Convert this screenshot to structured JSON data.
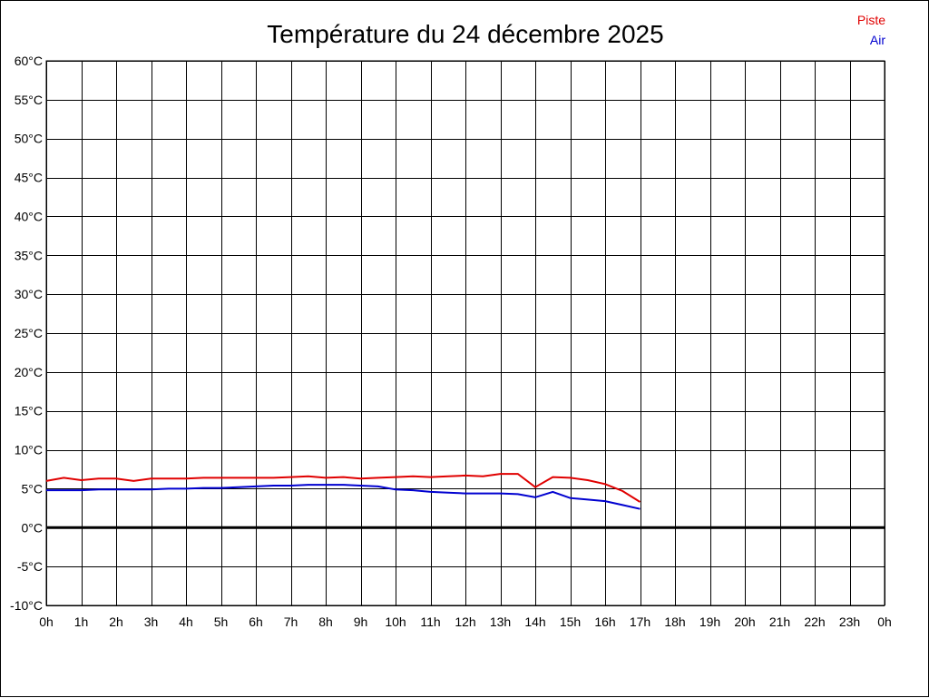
{
  "chart_data": {
    "type": "line",
    "title": "Température du 24 décembre 2025",
    "xlabel": "",
    "ylabel": "",
    "x_ticks": [
      "0h",
      "1h",
      "2h",
      "3h",
      "4h",
      "5h",
      "6h",
      "7h",
      "8h",
      "9h",
      "10h",
      "11h",
      "12h",
      "13h",
      "14h",
      "15h",
      "16h",
      "17h",
      "18h",
      "19h",
      "20h",
      "21h",
      "22h",
      "23h",
      "0h"
    ],
    "y_ticks": [
      "60°C",
      "55°C",
      "50°C",
      "45°C",
      "40°C",
      "35°C",
      "30°C",
      "25°C",
      "20°C",
      "15°C",
      "10°C",
      "5°C",
      "0°C",
      "-5°C",
      "-10°C"
    ],
    "xlim": [
      0,
      24
    ],
    "ylim": [
      -10,
      60
    ],
    "grid": true,
    "legend_position": "top-right",
    "zero_line": true,
    "series": [
      {
        "name": "Piste",
        "color": "#e00000",
        "x": [
          0,
          0.5,
          1,
          1.5,
          2,
          2.5,
          3,
          3.5,
          4,
          4.5,
          5,
          5.5,
          6,
          6.5,
          7,
          7.5,
          8,
          8.5,
          9,
          9.5,
          10,
          10.5,
          11,
          11.5,
          12,
          12.5,
          13,
          13.5,
          14,
          14.5,
          15,
          15.5,
          16,
          16.5,
          17
        ],
        "values": [
          6.0,
          6.4,
          6.1,
          6.3,
          6.3,
          6.0,
          6.3,
          6.3,
          6.3,
          6.4,
          6.4,
          6.4,
          6.4,
          6.4,
          6.5,
          6.6,
          6.4,
          6.5,
          6.3,
          6.4,
          6.5,
          6.6,
          6.5,
          6.6,
          6.7,
          6.6,
          6.9,
          6.9,
          5.2,
          6.5,
          6.4,
          6.1,
          5.6,
          4.7,
          3.3
        ]
      },
      {
        "name": "Air",
        "color": "#0000d0",
        "x": [
          0,
          0.5,
          1,
          1.5,
          2,
          2.5,
          3,
          3.5,
          4,
          4.5,
          5,
          5.5,
          6,
          6.5,
          7,
          7.5,
          8,
          8.5,
          9,
          9.5,
          10,
          10.5,
          11,
          11.5,
          12,
          12.5,
          13,
          13.5,
          14,
          14.5,
          15,
          15.5,
          16,
          16.5,
          17
        ],
        "values": [
          4.8,
          4.8,
          4.8,
          4.9,
          4.9,
          4.9,
          4.9,
          5.0,
          5.0,
          5.1,
          5.1,
          5.2,
          5.3,
          5.4,
          5.4,
          5.5,
          5.5,
          5.5,
          5.4,
          5.3,
          4.9,
          4.8,
          4.6,
          4.5,
          4.4,
          4.4,
          4.4,
          4.3,
          3.9,
          4.6,
          3.8,
          3.6,
          3.4,
          2.9,
          2.4
        ]
      }
    ]
  }
}
